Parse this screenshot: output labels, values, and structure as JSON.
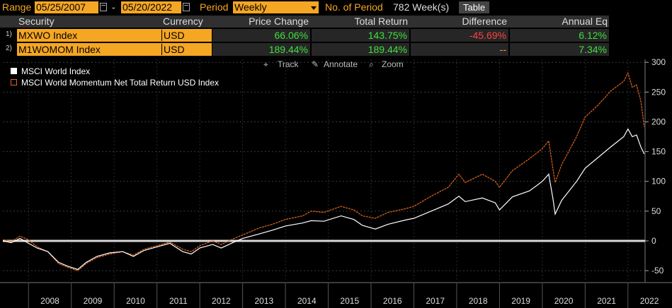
{
  "toolbar": {
    "range_label": "Range",
    "start_date": "05/25/2007",
    "dash": "-",
    "end_date": "05/20/2022",
    "period_label": "Period",
    "period_value": "Weekly",
    "num_period_label": "No. of Period",
    "num_period_value": "782 Week(s)",
    "table_button": "Table"
  },
  "table": {
    "headers": [
      "Security",
      "Currency",
      "Price Change",
      "Total Return",
      "Difference",
      "Annual Eq"
    ],
    "rows": [
      {
        "num": "1)",
        "security": "MXWO Index",
        "currency": "USD",
        "price_change": "66.06%",
        "total_return": "143.75%",
        "difference": "-45.69%",
        "annual_eq": "6.12%"
      },
      {
        "num": "2)",
        "security": "M1WOMOM Index",
        "currency": "USD",
        "price_change": "189.44%",
        "total_return": "189.44%",
        "difference": "--",
        "annual_eq": "7.34%"
      }
    ]
  },
  "chart_tools": {
    "track": "Track",
    "annotate": "Annotate",
    "zoom": "Zoom"
  },
  "colors": {
    "accent": "#f5a623",
    "positive": "#3ee03e",
    "negative": "#ff4040",
    "series_white": "#ffffff",
    "series_orange": "#e2661a"
  },
  "chart_data": {
    "type": "line",
    "legend_position": "top-left",
    "grid": true,
    "ylim": [
      -70,
      305
    ],
    "yticks": [
      -50,
      0,
      50,
      100,
      150,
      200,
      250,
      300
    ],
    "xlim": [
      2007.4,
      2022.4
    ],
    "xticks": [
      "2008",
      "2009",
      "2010",
      "2011",
      "2012",
      "2013",
      "2014",
      "2015",
      "2016",
      "2017",
      "2018",
      "2019",
      "2020",
      "2021",
      "2022"
    ],
    "series": [
      {
        "name": "MSCI World Index",
        "color": "#ffffff",
        "points": [
          [
            2007.4,
            0
          ],
          [
            2007.6,
            -3
          ],
          [
            2007.8,
            4
          ],
          [
            2008.0,
            -4
          ],
          [
            2008.2,
            -12
          ],
          [
            2008.45,
            -18
          ],
          [
            2008.7,
            -36
          ],
          [
            2008.9,
            -42
          ],
          [
            2009.15,
            -48
          ],
          [
            2009.35,
            -36
          ],
          [
            2009.6,
            -26
          ],
          [
            2009.9,
            -20
          ],
          [
            2010.2,
            -18
          ],
          [
            2010.45,
            -26
          ],
          [
            2010.7,
            -16
          ],
          [
            2011.0,
            -10
          ],
          [
            2011.3,
            -4
          ],
          [
            2011.6,
            -18
          ],
          [
            2011.8,
            -22
          ],
          [
            2012.0,
            -12
          ],
          [
            2012.3,
            -6
          ],
          [
            2012.5,
            -12
          ],
          [
            2012.8,
            -2
          ],
          [
            2013.0,
            4
          ],
          [
            2013.4,
            12
          ],
          [
            2013.7,
            18
          ],
          [
            2014.0,
            25
          ],
          [
            2014.4,
            30
          ],
          [
            2014.6,
            34
          ],
          [
            2014.9,
            33
          ],
          [
            2015.3,
            42
          ],
          [
            2015.6,
            36
          ],
          [
            2015.8,
            26
          ],
          [
            2016.1,
            20
          ],
          [
            2016.4,
            28
          ],
          [
            2016.8,
            35
          ],
          [
            2017.0,
            38
          ],
          [
            2017.4,
            50
          ],
          [
            2017.8,
            62
          ],
          [
            2018.05,
            75
          ],
          [
            2018.2,
            66
          ],
          [
            2018.6,
            72
          ],
          [
            2018.9,
            64
          ],
          [
            2019.0,
            52
          ],
          [
            2019.3,
            74
          ],
          [
            2019.7,
            84
          ],
          [
            2020.0,
            100
          ],
          [
            2020.15,
            112
          ],
          [
            2020.25,
            70
          ],
          [
            2020.3,
            45
          ],
          [
            2020.45,
            68
          ],
          [
            2020.8,
            100
          ],
          [
            2021.0,
            122
          ],
          [
            2021.3,
            140
          ],
          [
            2021.6,
            158
          ],
          [
            2021.9,
            175
          ],
          [
            2022.0,
            188
          ],
          [
            2022.1,
            175
          ],
          [
            2022.2,
            178
          ],
          [
            2022.3,
            158
          ],
          [
            2022.38,
            146
          ]
        ]
      },
      {
        "name": "MSCI World Momentum Net Total Return USD Index",
        "color": "#e2661a",
        "points": [
          [
            2007.4,
            2
          ],
          [
            2007.6,
            -1
          ],
          [
            2007.8,
            8
          ],
          [
            2008.0,
            2
          ],
          [
            2008.2,
            -10
          ],
          [
            2008.45,
            -18
          ],
          [
            2008.7,
            -38
          ],
          [
            2008.9,
            -44
          ],
          [
            2009.15,
            -50
          ],
          [
            2009.35,
            -38
          ],
          [
            2009.6,
            -28
          ],
          [
            2009.9,
            -22
          ],
          [
            2010.2,
            -18
          ],
          [
            2010.45,
            -24
          ],
          [
            2010.7,
            -14
          ],
          [
            2011.0,
            -8
          ],
          [
            2011.3,
            -2
          ],
          [
            2011.6,
            -14
          ],
          [
            2011.8,
            -18
          ],
          [
            2012.0,
            -8
          ],
          [
            2012.3,
            0
          ],
          [
            2012.5,
            -6
          ],
          [
            2012.8,
            4
          ],
          [
            2013.0,
            10
          ],
          [
            2013.4,
            22
          ],
          [
            2013.7,
            28
          ],
          [
            2014.0,
            36
          ],
          [
            2014.4,
            42
          ],
          [
            2014.6,
            50
          ],
          [
            2014.9,
            48
          ],
          [
            2015.3,
            58
          ],
          [
            2015.6,
            52
          ],
          [
            2015.8,
            42
          ],
          [
            2016.1,
            38
          ],
          [
            2016.4,
            48
          ],
          [
            2016.8,
            54
          ],
          [
            2017.0,
            58
          ],
          [
            2017.4,
            75
          ],
          [
            2017.8,
            90
          ],
          [
            2018.05,
            112
          ],
          [
            2018.2,
            98
          ],
          [
            2018.6,
            112
          ],
          [
            2018.9,
            100
          ],
          [
            2019.0,
            90
          ],
          [
            2019.3,
            118
          ],
          [
            2019.7,
            138
          ],
          [
            2020.0,
            155
          ],
          [
            2020.15,
            168
          ],
          [
            2020.25,
            120
          ],
          [
            2020.3,
            98
          ],
          [
            2020.45,
            128
          ],
          [
            2020.8,
            175
          ],
          [
            2021.0,
            208
          ],
          [
            2021.3,
            228
          ],
          [
            2021.6,
            252
          ],
          [
            2021.9,
            268
          ],
          [
            2022.0,
            282
          ],
          [
            2022.1,
            258
          ],
          [
            2022.2,
            262
          ],
          [
            2022.3,
            235
          ],
          [
            2022.38,
            192
          ]
        ]
      }
    ]
  }
}
